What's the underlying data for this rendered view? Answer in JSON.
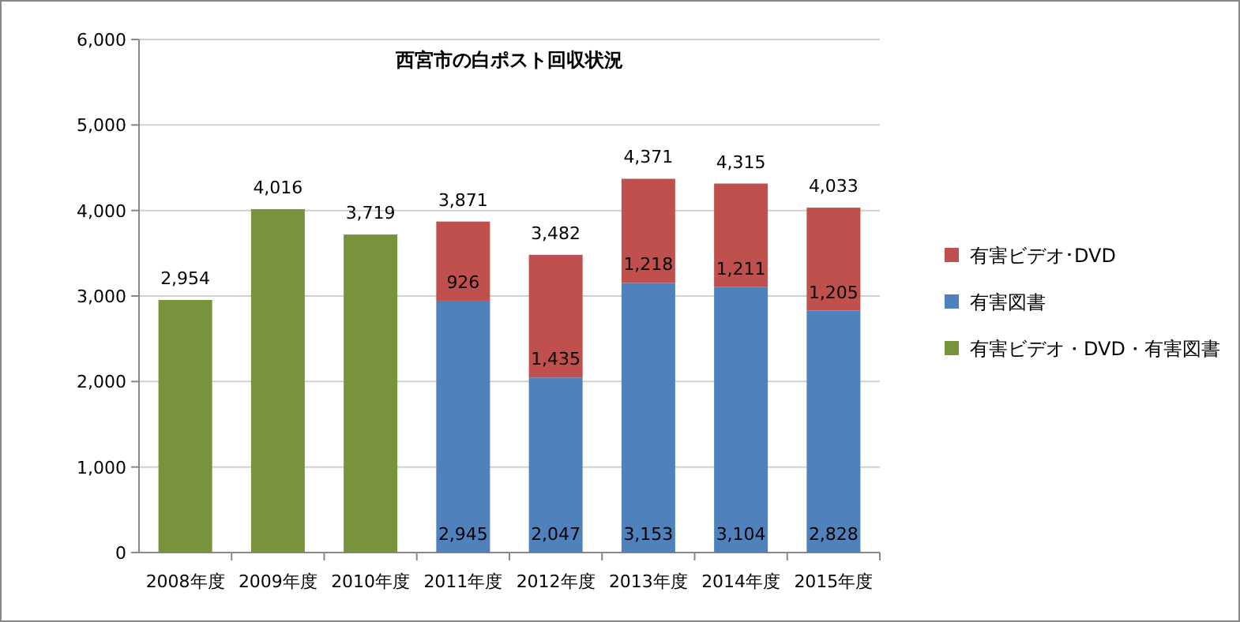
{
  "chart_data": {
    "type": "bar",
    "title": "西宮市の白ポスト回収状況",
    "stacked": true,
    "grid": "y",
    "legend": "right",
    "categories": [
      "2008年度",
      "2009年度",
      "2010年度",
      "2011年度",
      "2012年度",
      "2013年度",
      "2014年度",
      "2015年度"
    ],
    "series": [
      {
        "name": "有害ビデオ・DVD・有害図書",
        "color": "#77933c",
        "values": [
          2954,
          4016,
          3719,
          null,
          null,
          null,
          null,
          null
        ]
      },
      {
        "name": "有害図書",
        "color": "#4f81bd",
        "values": [
          null,
          null,
          null,
          2945,
          2047,
          3153,
          3104,
          2828
        ],
        "value_labels": [
          null,
          null,
          null,
          "2,945",
          "2,047",
          "3,153",
          "3,104",
          "2,828"
        ]
      },
      {
        "name": "有害ビデオ･DVD",
        "color": "#c0504d",
        "values": [
          null,
          null,
          null,
          926,
          1435,
          1218,
          1211,
          1205
        ],
        "value_labels": [
          null,
          null,
          null,
          "926",
          "1,435",
          "1,218",
          "1,211",
          "1,205"
        ]
      }
    ],
    "totals": [
      "2,954",
      "4,016",
      "3,719",
      "3,871",
      "3,482",
      "4,371",
      "4,315",
      "4,033"
    ],
    "ylim": [
      0,
      6000
    ],
    "yticks": [
      {
        "value": 0,
        "label": "0"
      },
      {
        "value": 1000,
        "label": "1,000"
      },
      {
        "value": 2000,
        "label": "2,000"
      },
      {
        "value": 3000,
        "label": "3,000"
      },
      {
        "value": 4000,
        "label": "4,000"
      },
      {
        "value": 5000,
        "label": "5,000"
      },
      {
        "value": 6000,
        "label": "6,000"
      }
    ]
  }
}
